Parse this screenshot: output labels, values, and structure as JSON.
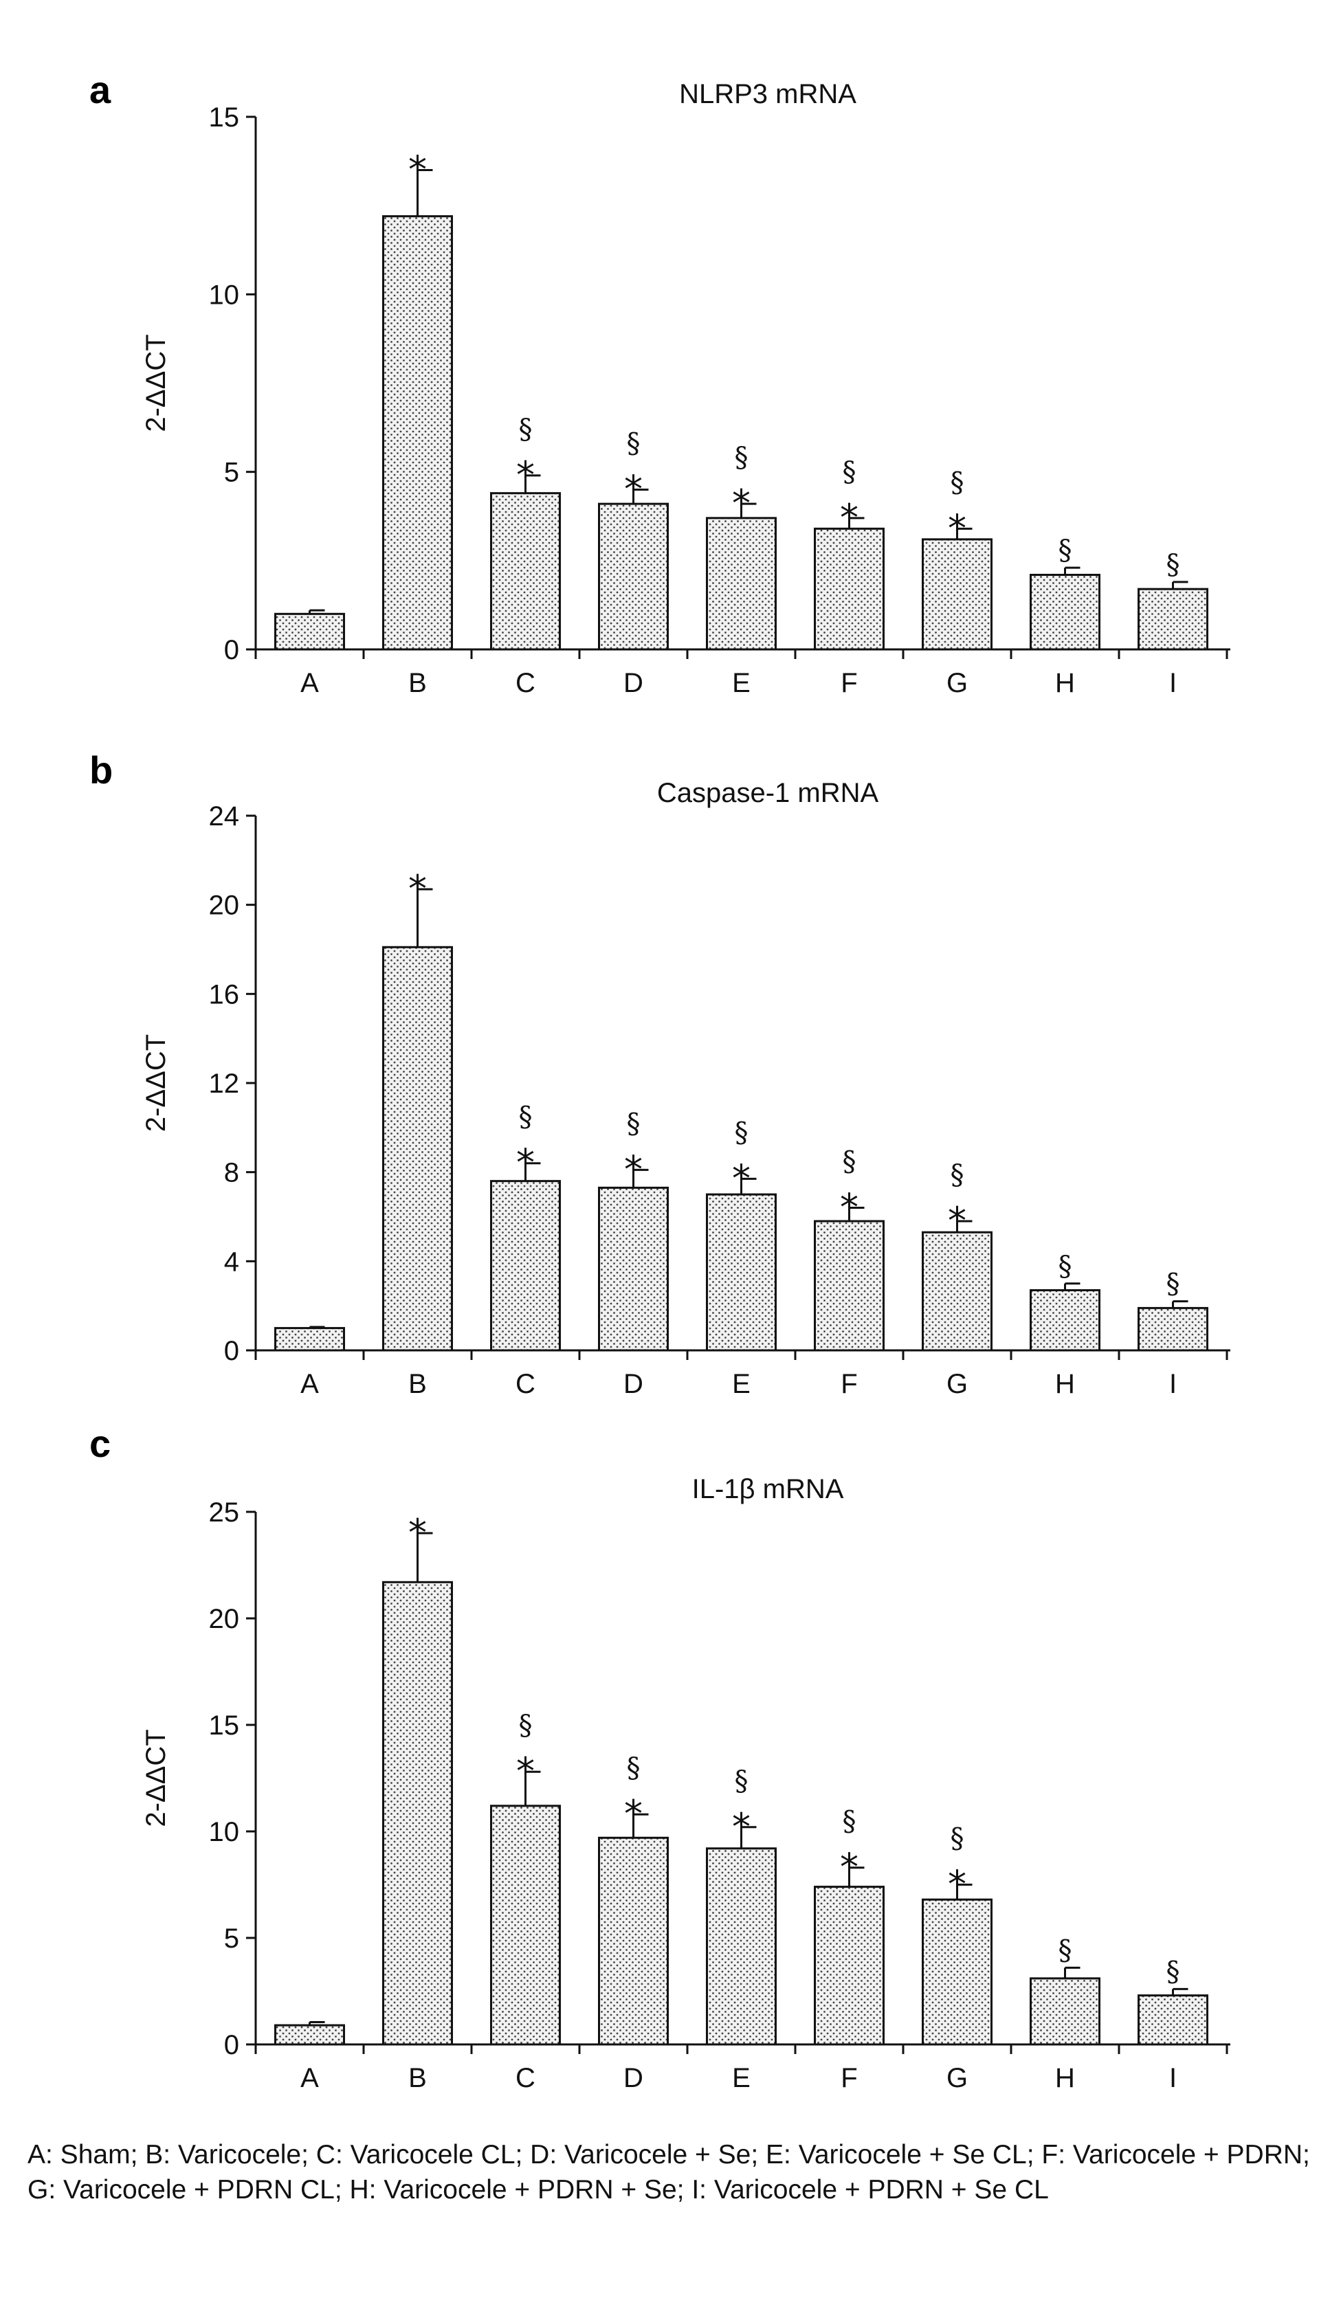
{
  "chart_data": [
    {
      "panel": "a",
      "type": "bar",
      "title": "NLRP3 mRNA",
      "ylabel": "2-ΔΔCT",
      "xlabel": "",
      "ylim": [
        0,
        15
      ],
      "yticks": [
        0,
        5,
        10,
        15
      ],
      "categories": [
        "A",
        "B",
        "C",
        "D",
        "E",
        "F",
        "G",
        "H",
        "I"
      ],
      "values": [
        1.0,
        12.2,
        4.4,
        4.1,
        3.7,
        3.4,
        3.1,
        2.1,
        1.7
      ],
      "errors": [
        0.1,
        1.3,
        0.5,
        0.4,
        0.4,
        0.3,
        0.3,
        0.2,
        0.2
      ],
      "star": [
        false,
        true,
        true,
        true,
        true,
        true,
        true,
        false,
        false
      ],
      "section": [
        false,
        false,
        true,
        true,
        true,
        true,
        true,
        true,
        true
      ]
    },
    {
      "panel": "b",
      "type": "bar",
      "title": "Caspase-1 mRNA",
      "ylabel": "2-ΔΔCT",
      "xlabel": "",
      "ylim": [
        0,
        24
      ],
      "yticks": [
        0,
        4,
        8,
        12,
        16,
        20,
        24
      ],
      "categories": [
        "A",
        "B",
        "C",
        "D",
        "E",
        "F",
        "G",
        "H",
        "I"
      ],
      "values": [
        1.0,
        18.1,
        7.6,
        7.3,
        7.0,
        5.8,
        5.3,
        2.7,
        1.9
      ],
      "errors": [
        0.05,
        2.6,
        0.8,
        0.8,
        0.7,
        0.6,
        0.5,
        0.3,
        0.3
      ],
      "star": [
        false,
        true,
        true,
        true,
        true,
        true,
        true,
        false,
        false
      ],
      "section": [
        false,
        false,
        true,
        true,
        true,
        true,
        true,
        true,
        true
      ]
    },
    {
      "panel": "c",
      "type": "bar",
      "title": "IL-1β mRNA",
      "ylabel": "2-ΔΔCT",
      "xlabel": "",
      "ylim": [
        0,
        25
      ],
      "yticks": [
        0,
        5,
        10,
        15,
        20,
        25
      ],
      "categories": [
        "A",
        "B",
        "C",
        "D",
        "E",
        "F",
        "G",
        "H",
        "I"
      ],
      "values": [
        0.9,
        21.7,
        11.2,
        9.7,
        9.2,
        7.4,
        6.8,
        3.1,
        2.3
      ],
      "errors": [
        0.15,
        2.3,
        1.6,
        1.1,
        1.0,
        0.9,
        0.7,
        0.5,
        0.3
      ],
      "star": [
        false,
        true,
        true,
        true,
        true,
        true,
        true,
        false,
        false
      ],
      "section": [
        false,
        false,
        true,
        true,
        true,
        true,
        true,
        true,
        true
      ]
    }
  ],
  "symbols": {
    "star": "*",
    "section": "§"
  },
  "caption": "A: Sham; B: Varicocele; C: Varicocele CL; D: Varicocele + Se; E: Varicocele + Se CL; F: Varicocele + PDRN; G: Varicocele + PDRN CL; H: Varicocele + PDRN + Se; I: Varicocele + PDRN + Se CL",
  "colors": {
    "axis": "#111111",
    "bar_fill": "#f2f2f2",
    "dots": "#444444"
  }
}
